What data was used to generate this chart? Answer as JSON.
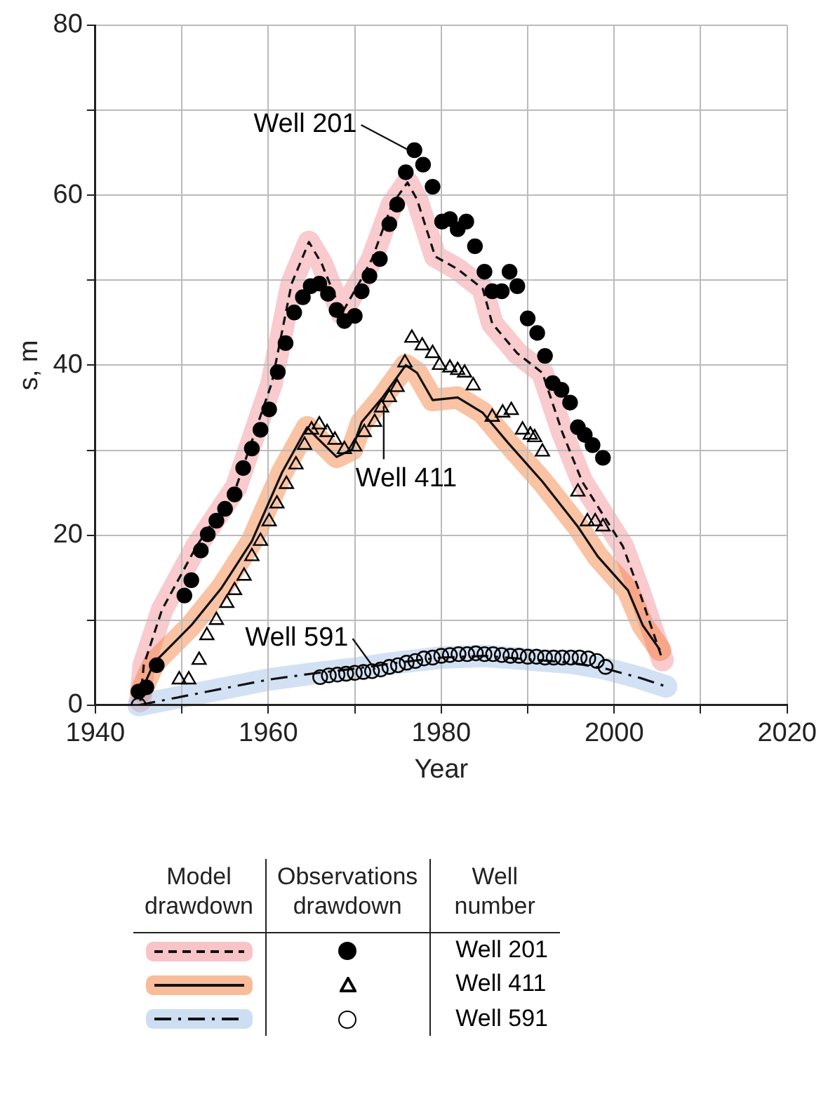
{
  "chart_data": {
    "type": "scatter",
    "xlabel": "Year",
    "ylabel": "s, m",
    "legend_title": "Well number",
    "legend": "bottom",
    "grid": true,
    "xlim": [
      1940,
      2020
    ],
    "xticks": [
      1940,
      {
        "value": 1950,
        "label": null
      },
      1960,
      {
        "value": 1970,
        "label": null
      },
      1980,
      {
        "value": 1990,
        "label": null
      },
      2000,
      {
        "value": 2010,
        "label": null
      },
      2020
    ],
    "ylim": [
      0,
      80
    ],
    "yticks": [
      0,
      {
        "value": 10,
        "label": null
      },
      20,
      {
        "value": 30,
        "label": null
      },
      40,
      {
        "value": 50,
        "label": null
      },
      60,
      {
        "value": 70,
        "label": null
      },
      80
    ],
    "annotations": [
      "Model drawdown",
      "Observations drawdown"
    ],
    "series": [
      {
        "type": "line",
        "line_style": "dashed",
        "marker": "none",
        "color": "#111111",
        "x": [
          1945.2,
          1945.6,
          1947.7,
          1951.7,
          1956.3,
          1960.4,
          1962.7,
          1964.7,
          1966.2,
          1968.5,
          1970.8,
          1972.0,
          1974.3,
          1976.1,
          1977.2,
          1979.3,
          1981.9,
          1984.8,
          1985.9,
          1988.8,
          1991.7,
          1994.0,
          1996.3,
          2001.0,
          2002.7,
          2005.6
        ],
        "values": [
          0.5,
          4.7,
          11.2,
          18.7,
          25.7,
          37.9,
          49.6,
          54.5,
          51.9,
          46.1,
          50.2,
          52.5,
          58.9,
          61.5,
          59.5,
          52.8,
          51.3,
          49.0,
          44.9,
          41.4,
          39.1,
          32.1,
          26.3,
          18.7,
          14.0,
          5.3
        ]
      },
      {
        "name": "Well 201",
        "marker": "circle",
        "color": "#000000",
        "x": [
          1945.0,
          1945.9,
          1947.1,
          1950.3,
          1951.1,
          1952.2,
          1953.0,
          1954.0,
          1955.0,
          1956.1,
          1957.1,
          1958.1,
          1959.1,
          1960.1,
          1961.1,
          1962.0,
          1963.0,
          1964.0,
          1964.9,
          1965.9,
          1966.9,
          1967.9,
          1968.8,
          1970.0,
          1970.8,
          1971.7,
          1972.9,
          1974.0,
          1974.9,
          1975.9,
          1976.9,
          1977.9,
          1979.0,
          1980.1,
          1981.0,
          1981.9,
          1982.9,
          1983.9,
          1985.0,
          1985.9,
          1987.0,
          1987.9,
          1988.8,
          1990.0,
          1991.1,
          1992.0,
          1992.9,
          1993.9,
          1994.9,
          1995.8,
          1996.6,
          1997.5,
          1998.7
        ],
        "values": [
          1.6,
          2.1,
          4.7,
          12.9,
          14.7,
          18.2,
          20.1,
          21.7,
          23.1,
          24.8,
          27.9,
          30.2,
          32.4,
          34.8,
          39.2,
          42.6,
          46.2,
          48.0,
          49.3,
          49.6,
          48.4,
          46.5,
          45.2,
          45.8,
          48.7,
          50.5,
          52.5,
          56.6,
          58.9,
          62.7,
          65.3,
          63.6,
          61.0,
          56.9,
          57.2,
          56.0,
          56.9,
          54.0,
          51.0,
          48.7,
          48.7,
          51.0,
          49.3,
          45.5,
          43.8,
          41.1,
          37.9,
          37.1,
          35.6,
          32.7,
          31.8,
          30.6,
          29.1
        ]
      },
      {
        "type": "line",
        "line_style": "solid",
        "marker": "none",
        "color": "#111111",
        "x": [
          1945.3,
          1946.8,
          1951.1,
          1954.6,
          1958.1,
          1961.6,
          1964.5,
          1965.6,
          1967.9,
          1969.7,
          1970.8,
          1973.2,
          1975.9,
          1977.2,
          1979.0,
          1981.9,
          1984.8,
          1987.7,
          1991.7,
          1995.8,
          1998.1,
          2001.6,
          2003.3,
          2005.3
        ],
        "values": [
          1.6,
          5.0,
          9.4,
          13.8,
          19.3,
          27.4,
          32.7,
          31.5,
          29.2,
          30.1,
          33.3,
          36.2,
          40.0,
          39.1,
          35.9,
          36.2,
          34.4,
          30.9,
          26.3,
          21.0,
          17.5,
          13.5,
          9.4,
          6.5
        ]
      },
      {
        "name": "Well 411",
        "marker": "triangle",
        "color": "#000000",
        "x": [
          1949.7,
          1950.8,
          1952.0,
          1952.9,
          1954.0,
          1955.2,
          1956.1,
          1957.2,
          1958.1,
          1959.1,
          1960.1,
          1961.0,
          1962.1,
          1963.2,
          1964.2,
          1965.0,
          1965.9,
          1966.8,
          1967.7,
          1968.8,
          1970.0,
          1971.1,
          1972.3,
          1973.1,
          1974.0,
          1974.9,
          1975.8,
          1976.6,
          1977.8,
          1979.0,
          1979.8,
          1981.0,
          1981.9,
          1982.7,
          1983.7,
          1985.9,
          1987.1,
          1988.1,
          1989.4,
          1990.3,
          1990.8,
          1991.7,
          1995.8,
          1996.9,
          1997.8,
          1998.7
        ],
        "values": [
          3.0,
          3.0,
          5.3,
          8.2,
          10.0,
          12.0,
          13.5,
          15.2,
          17.5,
          19.3,
          21.6,
          23.7,
          26.0,
          28.3,
          30.6,
          32.4,
          33.0,
          32.1,
          31.2,
          30.1,
          30.4,
          32.1,
          33.3,
          35.0,
          36.2,
          37.4,
          40.3,
          43.2,
          42.3,
          41.4,
          40.0,
          39.7,
          39.4,
          39.1,
          37.6,
          33.9,
          34.4,
          34.7,
          32.4,
          31.8,
          31.5,
          29.8,
          25.1,
          21.6,
          21.6,
          21.0
        ]
      },
      {
        "type": "line",
        "line_style": "dashdot",
        "marker": "none",
        "color": "#111111",
        "x": [
          1945,
          1950,
          1955,
          1960,
          1965,
          1970,
          1975,
          1980,
          1985,
          1990,
          1995,
          1999,
          2003,
          2006
        ],
        "values": [
          0,
          1.0,
          2.0,
          3.0,
          3.7,
          4.3,
          5.0,
          5.6,
          5.8,
          5.4,
          5.0,
          4.3,
          3.2,
          2.2
        ]
      },
      {
        "name": "Well 591",
        "marker": "circle-open",
        "color": "#000000",
        "x": [
          1945,
          1966,
          1967,
          1968,
          1969,
          1970,
          1971,
          1972,
          1973,
          1974,
          1975,
          1976,
          1977,
          1978,
          1979,
          1980,
          1981,
          1982,
          1983,
          1984,
          1985,
          1986,
          1987,
          1988,
          1989,
          1990,
          1991,
          1992,
          1993,
          1994,
          1995,
          1996,
          1997,
          1998,
          1999
        ],
        "values": [
          0,
          3.3,
          3.5,
          3.6,
          3.7,
          3.8,
          3.9,
          4.0,
          4.2,
          4.5,
          4.7,
          5.0,
          5.2,
          5.5,
          5.6,
          5.8,
          5.9,
          6.0,
          6.0,
          6.1,
          6.0,
          6.0,
          5.9,
          5.8,
          5.8,
          5.7,
          5.7,
          5.6,
          5.6,
          5.6,
          5.6,
          5.6,
          5.5,
          5.2,
          4.5
        ]
      }
    ]
  }
}
